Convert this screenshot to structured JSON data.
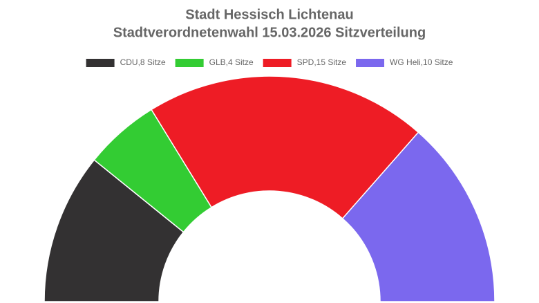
{
  "chart_data": {
    "type": "pie",
    "title": "Stadt Hessisch Lichtenau",
    "subtitle": "Stadtverordnetenwahl 15.03.2026 Sitzverteilung",
    "legend": "top",
    "series": [
      {
        "name": "CDU,8 Sitze",
        "color": "#333132",
        "value": 8
      },
      {
        "name": "GLB,4 Sitze",
        "color": "#33cc33",
        "value": 4
      },
      {
        "name": "SPD,15 Sitze",
        "color": "#ee1c25",
        "value": 15
      },
      {
        "name": "WG Heli,10 Sitze",
        "color": "#7b68ee",
        "value": 10
      }
    ]
  }
}
